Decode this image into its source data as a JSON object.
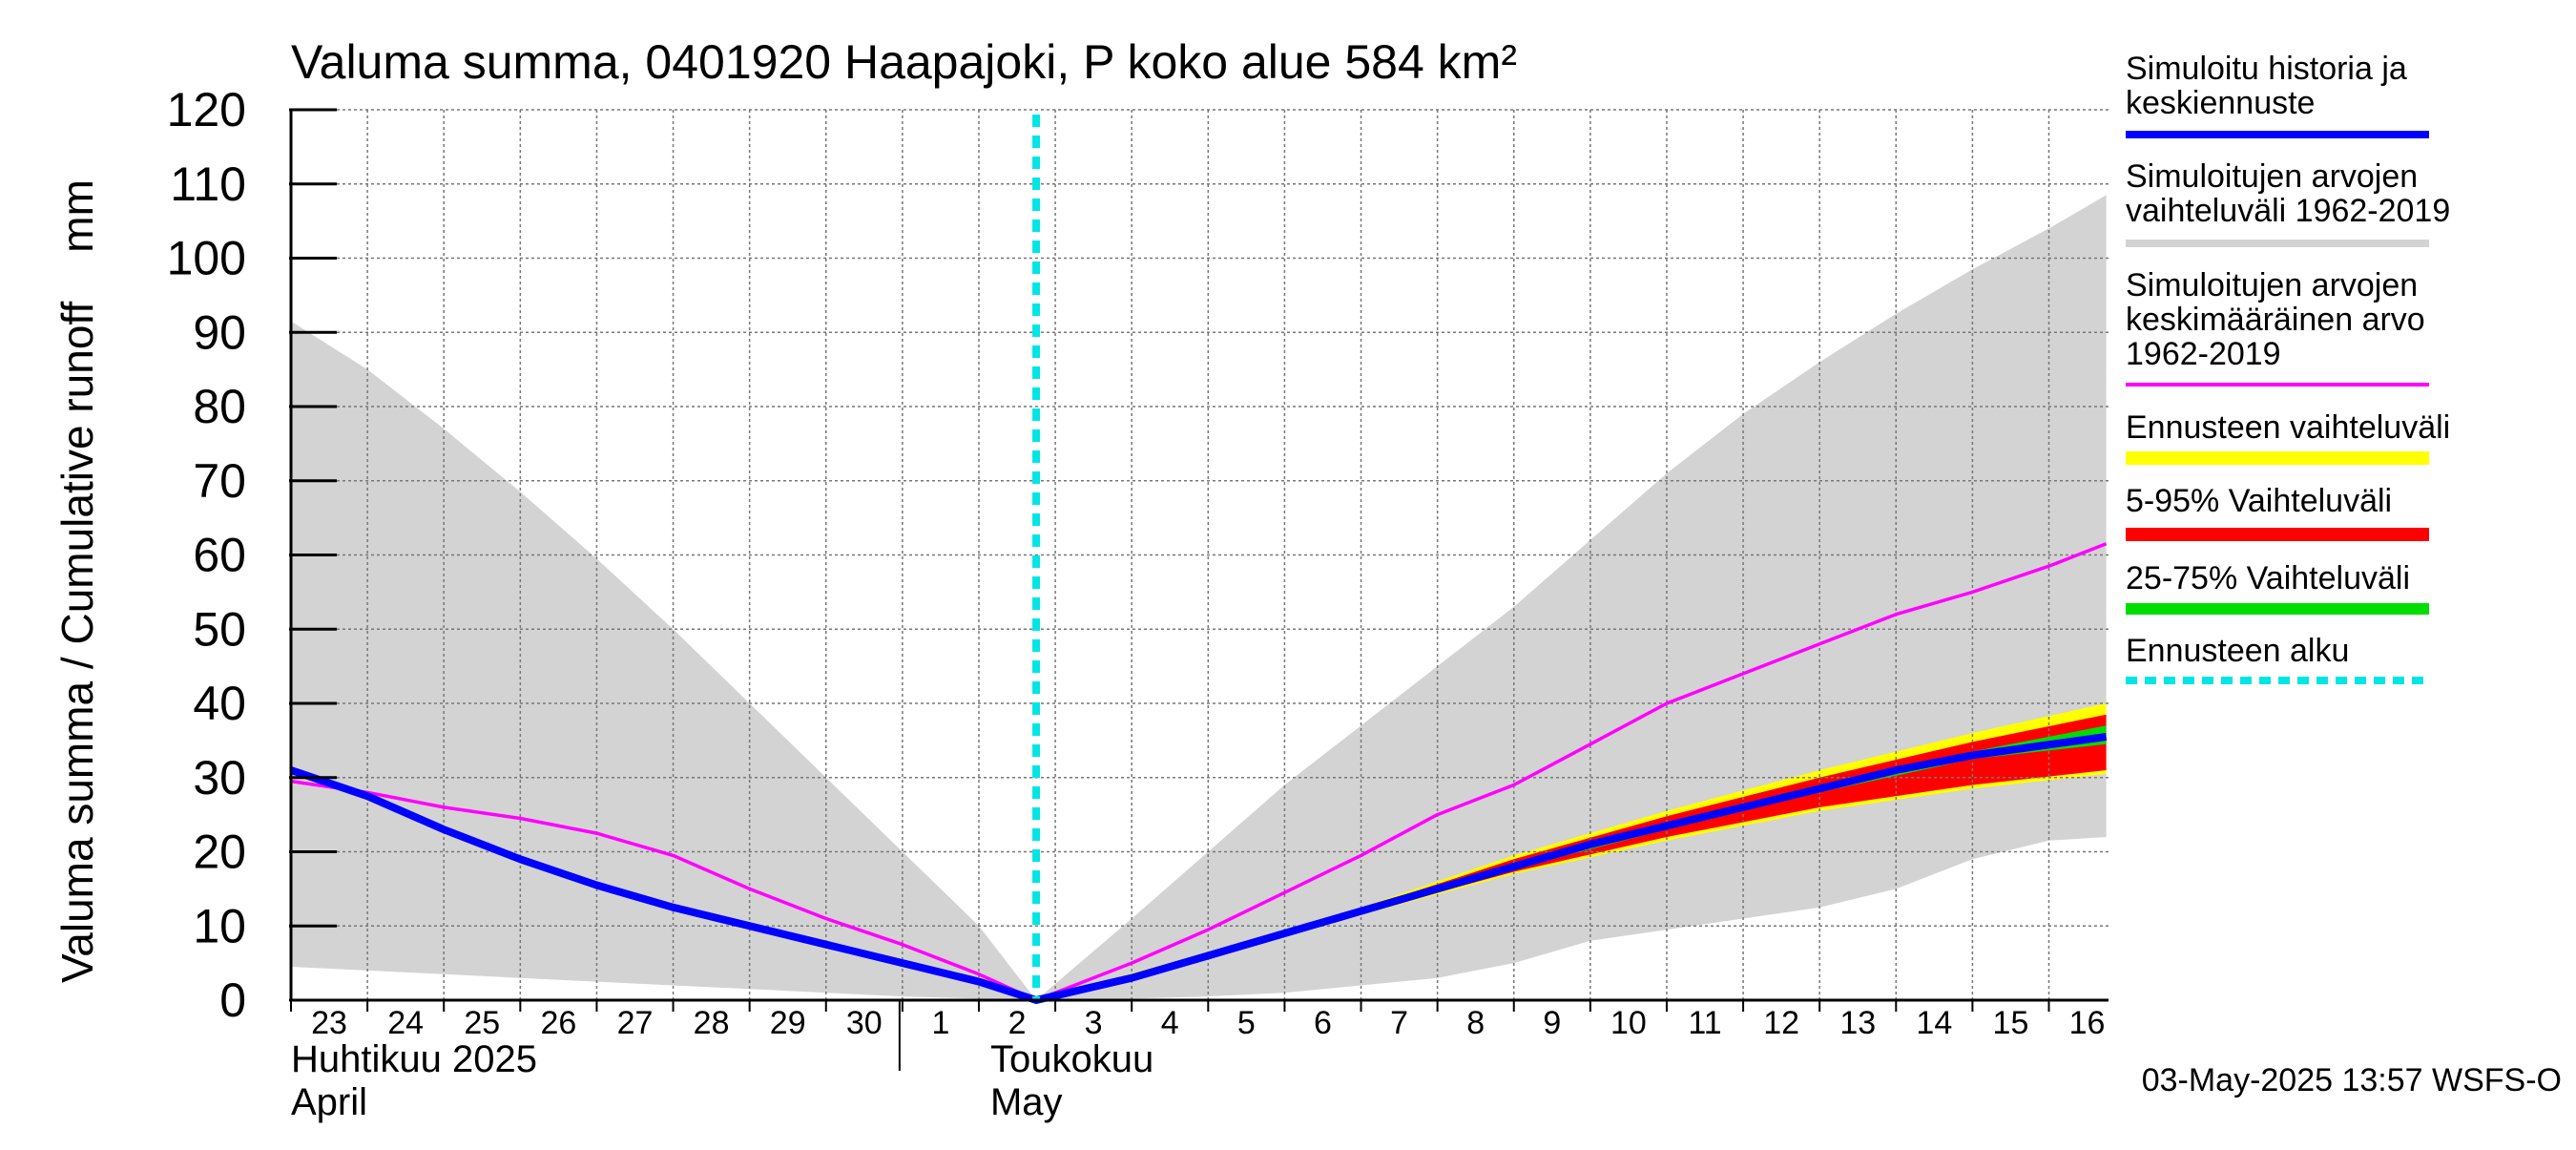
{
  "chart_data": {
    "type": "area",
    "title": "Valuma summa, 0401920 Haapajoki, P koko alue 584 km²",
    "ylabel": "Valuma summa / Cumulative runoff    mm",
    "ylim": [
      0,
      120
    ],
    "yticks": [
      0,
      10,
      20,
      30,
      40,
      50,
      60,
      70,
      80,
      90,
      100,
      110,
      120
    ],
    "x_start": "2025-04-23",
    "x_end": "2025-05-16",
    "xticks": [
      {
        "date": "2025-04-23",
        "label": "23"
      },
      {
        "date": "2025-04-24",
        "label": "24"
      },
      {
        "date": "2025-04-25",
        "label": "25"
      },
      {
        "date": "2025-04-26",
        "label": "26"
      },
      {
        "date": "2025-04-27",
        "label": "27"
      },
      {
        "date": "2025-04-28",
        "label": "28"
      },
      {
        "date": "2025-04-29",
        "label": "29"
      },
      {
        "date": "2025-04-30",
        "label": "30"
      },
      {
        "date": "2025-05-01",
        "label": "1"
      },
      {
        "date": "2025-05-02",
        "label": "2"
      },
      {
        "date": "2025-05-03",
        "label": "3"
      },
      {
        "date": "2025-05-04",
        "label": "4"
      },
      {
        "date": "2025-05-05",
        "label": "5"
      },
      {
        "date": "2025-05-06",
        "label": "6"
      },
      {
        "date": "2025-05-07",
        "label": "7"
      },
      {
        "date": "2025-05-08",
        "label": "8"
      },
      {
        "date": "2025-05-09",
        "label": "9"
      },
      {
        "date": "2025-05-10",
        "label": "10"
      },
      {
        "date": "2025-05-11",
        "label": "11"
      },
      {
        "date": "2025-05-12",
        "label": "12"
      },
      {
        "date": "2025-05-13",
        "label": "13"
      },
      {
        "date": "2025-05-14",
        "label": "14"
      },
      {
        "date": "2025-05-15",
        "label": "15"
      },
      {
        "date": "2025-05-16",
        "label": "16"
      }
    ],
    "month_labels": [
      {
        "date": "2025-04-23",
        "fi": "Huhtikuu  2025",
        "en": "April"
      },
      {
        "date": "2025-05-02",
        "fi": "Toukokuu",
        "en": "May"
      }
    ],
    "forecast_start": "2025-05-02T18:00",
    "grid": true,
    "legend_position": "right",
    "footer": "03-May-2025 13:57 WSFS-O",
    "colors": {
      "history": "#0000ff",
      "range": "#d3d3d3",
      "mean": "#ff00ff",
      "forecast_range": "#ffff00",
      "p5_95": "#ff0000",
      "p25_75": "#00dd00",
      "forecast_start": "#00e5e5"
    },
    "series": [
      {
        "name": "Simuloitu historia ja keskiennuste",
        "role": "history",
        "points": [
          [
            "2025-04-23T00:00",
            31
          ],
          [
            "2025-04-24T00:00",
            27.5
          ],
          [
            "2025-04-25T00:00",
            23
          ],
          [
            "2025-04-26T00:00",
            19
          ],
          [
            "2025-04-27T00:00",
            15.5
          ],
          [
            "2025-04-28T00:00",
            12.5
          ],
          [
            "2025-04-29T00:00",
            10
          ],
          [
            "2025-04-30T00:00",
            7.5
          ],
          [
            "2025-05-01T00:00",
            5
          ],
          [
            "2025-05-02T00:00",
            2.5
          ],
          [
            "2025-05-02T18:00",
            0
          ],
          [
            "2025-05-04T00:00",
            3
          ],
          [
            "2025-05-05T00:00",
            6
          ],
          [
            "2025-05-06T00:00",
            9
          ],
          [
            "2025-05-07T00:00",
            12
          ],
          [
            "2025-05-08T00:00",
            15
          ],
          [
            "2025-05-09T00:00",
            18
          ],
          [
            "2025-05-10T00:00",
            21
          ],
          [
            "2025-05-11T00:00",
            23.5
          ],
          [
            "2025-05-12T00:00",
            26
          ],
          [
            "2025-05-13T00:00",
            28.5
          ],
          [
            "2025-05-14T00:00",
            31
          ],
          [
            "2025-05-15T00:00",
            33
          ],
          [
            "2025-05-16T18:00",
            35.5
          ]
        ]
      },
      {
        "name": "Simuloitujen arvojen keskimääräinen arvo 1962-2019",
        "role": "mean",
        "points": [
          [
            "2025-04-23T00:00",
            29.5
          ],
          [
            "2025-04-24T00:00",
            28
          ],
          [
            "2025-04-25T00:00",
            26
          ],
          [
            "2025-04-26T00:00",
            24.5
          ],
          [
            "2025-04-27T00:00",
            22.5
          ],
          [
            "2025-04-28T00:00",
            19.5
          ],
          [
            "2025-04-29T00:00",
            15
          ],
          [
            "2025-04-30T00:00",
            11
          ],
          [
            "2025-05-01T00:00",
            7.5
          ],
          [
            "2025-05-02T00:00",
            3.5
          ],
          [
            "2025-05-02T18:00",
            0
          ],
          [
            "2025-05-04T00:00",
            5
          ],
          [
            "2025-05-05T00:00",
            9.5
          ],
          [
            "2025-05-06T00:00",
            14.5
          ],
          [
            "2025-05-07T00:00",
            19.5
          ],
          [
            "2025-05-08T00:00",
            25
          ],
          [
            "2025-05-09T00:00",
            29
          ],
          [
            "2025-05-10T00:00",
            34.5
          ],
          [
            "2025-05-11T00:00",
            40
          ],
          [
            "2025-05-12T00:00",
            44
          ],
          [
            "2025-05-13T00:00",
            48
          ],
          [
            "2025-05-14T00:00",
            52
          ],
          [
            "2025-05-15T00:00",
            55
          ],
          [
            "2025-05-16T00:00",
            58.5
          ],
          [
            "2025-05-16T18:00",
            61.5
          ]
        ]
      }
    ],
    "bands": [
      {
        "name": "Simuloitujen arvojen vaihteluväli 1962-2019",
        "role": "range",
        "upper": [
          [
            "2025-04-23T00:00",
            91.5
          ],
          [
            "2025-04-24T00:00",
            85
          ],
          [
            "2025-04-25T00:00",
            77
          ],
          [
            "2025-04-26T00:00",
            68.5
          ],
          [
            "2025-04-27T00:00",
            59.5
          ],
          [
            "2025-04-28T00:00",
            50
          ],
          [
            "2025-04-29T00:00",
            40
          ],
          [
            "2025-04-30T00:00",
            30
          ],
          [
            "2025-05-01T00:00",
            20
          ],
          [
            "2025-05-02T00:00",
            10
          ],
          [
            "2025-05-02T18:00",
            0
          ],
          [
            "2025-05-04T00:00",
            11
          ],
          [
            "2025-05-05T00:00",
            20
          ],
          [
            "2025-05-06T00:00",
            29
          ],
          [
            "2025-05-07T00:00",
            37
          ],
          [
            "2025-05-08T00:00",
            45
          ],
          [
            "2025-05-09T00:00",
            53
          ],
          [
            "2025-05-10T00:00",
            62
          ],
          [
            "2025-05-11T00:00",
            71
          ],
          [
            "2025-05-12T00:00",
            79
          ],
          [
            "2025-05-13T00:00",
            86
          ],
          [
            "2025-05-14T00:00",
            92.5
          ],
          [
            "2025-05-15T00:00",
            98.5
          ],
          [
            "2025-05-16T00:00",
            104
          ],
          [
            "2025-05-16T18:00",
            108.5
          ]
        ],
        "lower": [
          [
            "2025-04-23T00:00",
            4.5
          ],
          [
            "2025-04-24T00:00",
            4
          ],
          [
            "2025-04-25T00:00",
            3.5
          ],
          [
            "2025-04-26T00:00",
            3
          ],
          [
            "2025-04-27T00:00",
            2.5
          ],
          [
            "2025-04-28T00:00",
            2
          ],
          [
            "2025-04-29T00:00",
            1.5
          ],
          [
            "2025-04-30T00:00",
            1
          ],
          [
            "2025-05-01T00:00",
            0.5
          ],
          [
            "2025-05-02T00:00",
            0.2
          ],
          [
            "2025-05-02T18:00",
            0
          ],
          [
            "2025-05-04T00:00",
            0.2
          ],
          [
            "2025-05-05T00:00",
            0.5
          ],
          [
            "2025-05-06T00:00",
            1
          ],
          [
            "2025-05-07T00:00",
            2
          ],
          [
            "2025-05-08T00:00",
            3
          ],
          [
            "2025-05-09T00:00",
            5
          ],
          [
            "2025-05-10T00:00",
            8
          ],
          [
            "2025-05-11T00:00",
            9.5
          ],
          [
            "2025-05-12T00:00",
            11
          ],
          [
            "2025-05-13T00:00",
            12.5
          ],
          [
            "2025-05-14T00:00",
            15
          ],
          [
            "2025-05-15T00:00",
            19
          ],
          [
            "2025-05-16T00:00",
            21.5
          ],
          [
            "2025-05-16T18:00",
            22
          ]
        ]
      },
      {
        "name": "Ennusteen vaihteluväli",
        "role": "forecast_range",
        "upper": [
          [
            "2025-05-02T18:00",
            0
          ],
          [
            "2025-05-05T00:00",
            6.5
          ],
          [
            "2025-05-07T00:00",
            12.5
          ],
          [
            "2025-05-09T00:00",
            19.5
          ],
          [
            "2025-05-11T00:00",
            25.5
          ],
          [
            "2025-05-13T00:00",
            31
          ],
          [
            "2025-05-15T00:00",
            36
          ],
          [
            "2025-05-16T18:00",
            40
          ]
        ],
        "lower": [
          [
            "2025-05-02T18:00",
            0
          ],
          [
            "2025-05-05T00:00",
            5.5
          ],
          [
            "2025-05-07T00:00",
            11.5
          ],
          [
            "2025-05-09T00:00",
            17
          ],
          [
            "2025-05-11T00:00",
            21.5
          ],
          [
            "2025-05-13T00:00",
            25.5
          ],
          [
            "2025-05-15T00:00",
            28.5
          ],
          [
            "2025-05-16T18:00",
            30.5
          ]
        ]
      },
      {
        "name": "5-95% Vaihteluväli",
        "role": "p5_95",
        "upper": [
          [
            "2025-05-02T18:00",
            0
          ],
          [
            "2025-05-05T00:00",
            6.3
          ],
          [
            "2025-05-07T00:00",
            12.3
          ],
          [
            "2025-05-09T00:00",
            19
          ],
          [
            "2025-05-11T00:00",
            24.8
          ],
          [
            "2025-05-13T00:00",
            30
          ],
          [
            "2025-05-15T00:00",
            34.8
          ],
          [
            "2025-05-16T18:00",
            38.5
          ]
        ],
        "lower": [
          [
            "2025-05-02T18:00",
            0
          ],
          [
            "2025-05-05T00:00",
            5.7
          ],
          [
            "2025-05-07T00:00",
            11.7
          ],
          [
            "2025-05-09T00:00",
            17.3
          ],
          [
            "2025-05-11T00:00",
            22
          ],
          [
            "2025-05-13T00:00",
            26
          ],
          [
            "2025-05-15T00:00",
            29
          ],
          [
            "2025-05-16T18:00",
            31
          ]
        ]
      },
      {
        "name": "25-75% Vaihteluväli",
        "role": "p25_75",
        "upper": [
          [
            "2025-05-02T18:00",
            0
          ],
          [
            "2025-05-05T00:00",
            6.1
          ],
          [
            "2025-05-07T00:00",
            12.1
          ],
          [
            "2025-05-09T00:00",
            18.4
          ],
          [
            "2025-05-11T00:00",
            24
          ],
          [
            "2025-05-13T00:00",
            29
          ],
          [
            "2025-05-15T00:00",
            33.5
          ],
          [
            "2025-05-16T18:00",
            37
          ]
        ],
        "lower": [
          [
            "2025-05-02T18:00",
            0
          ],
          [
            "2025-05-05T00:00",
            5.9
          ],
          [
            "2025-05-07T00:00",
            11.9
          ],
          [
            "2025-05-09T00:00",
            17.7
          ],
          [
            "2025-05-11T00:00",
            23
          ],
          [
            "2025-05-13T00:00",
            28
          ],
          [
            "2025-05-15T00:00",
            32.5
          ],
          [
            "2025-05-16T18:00",
            34.5
          ]
        ]
      }
    ],
    "legend": [
      {
        "role": "history",
        "lines": [
          "Simuloitu historia ja",
          "keskiennuste"
        ]
      },
      {
        "role": "range",
        "lines": [
          "Simuloitujen arvojen",
          "vaihteluväli 1962-2019"
        ]
      },
      {
        "role": "mean",
        "lines": [
          "Simuloitujen arvojen",
          "keskimääräinen arvo",
          "   1962-2019"
        ]
      },
      {
        "role": "forecast_range",
        "lines": [
          "Ennusteen vaihteluväli"
        ]
      },
      {
        "role": "p5_95",
        "lines": [
          "5-95% Vaihteluväli"
        ]
      },
      {
        "role": "p25_75",
        "lines": [
          "25-75% Vaihteluväli"
        ]
      },
      {
        "role": "forecast_start",
        "lines": [
          "Ennusteen alku"
        ]
      }
    ]
  }
}
